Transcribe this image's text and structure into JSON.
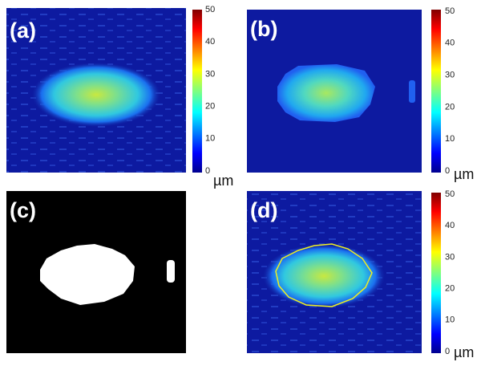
{
  "panels": [
    {
      "label": "(a)",
      "colorbar": {
        "ticks": [
          0,
          10,
          20,
          30,
          40,
          50
        ],
        "unit": "µm"
      }
    },
    {
      "label": "(b)",
      "colorbar": {
        "ticks": [
          0,
          10,
          20,
          30,
          40,
          50
        ],
        "unit": "µm"
      }
    },
    {
      "label": "(c)"
    },
    {
      "label": "(d)",
      "colorbar": {
        "ticks": [
          0,
          10,
          20,
          30,
          40,
          50
        ],
        "unit": "µm"
      }
    }
  ]
}
